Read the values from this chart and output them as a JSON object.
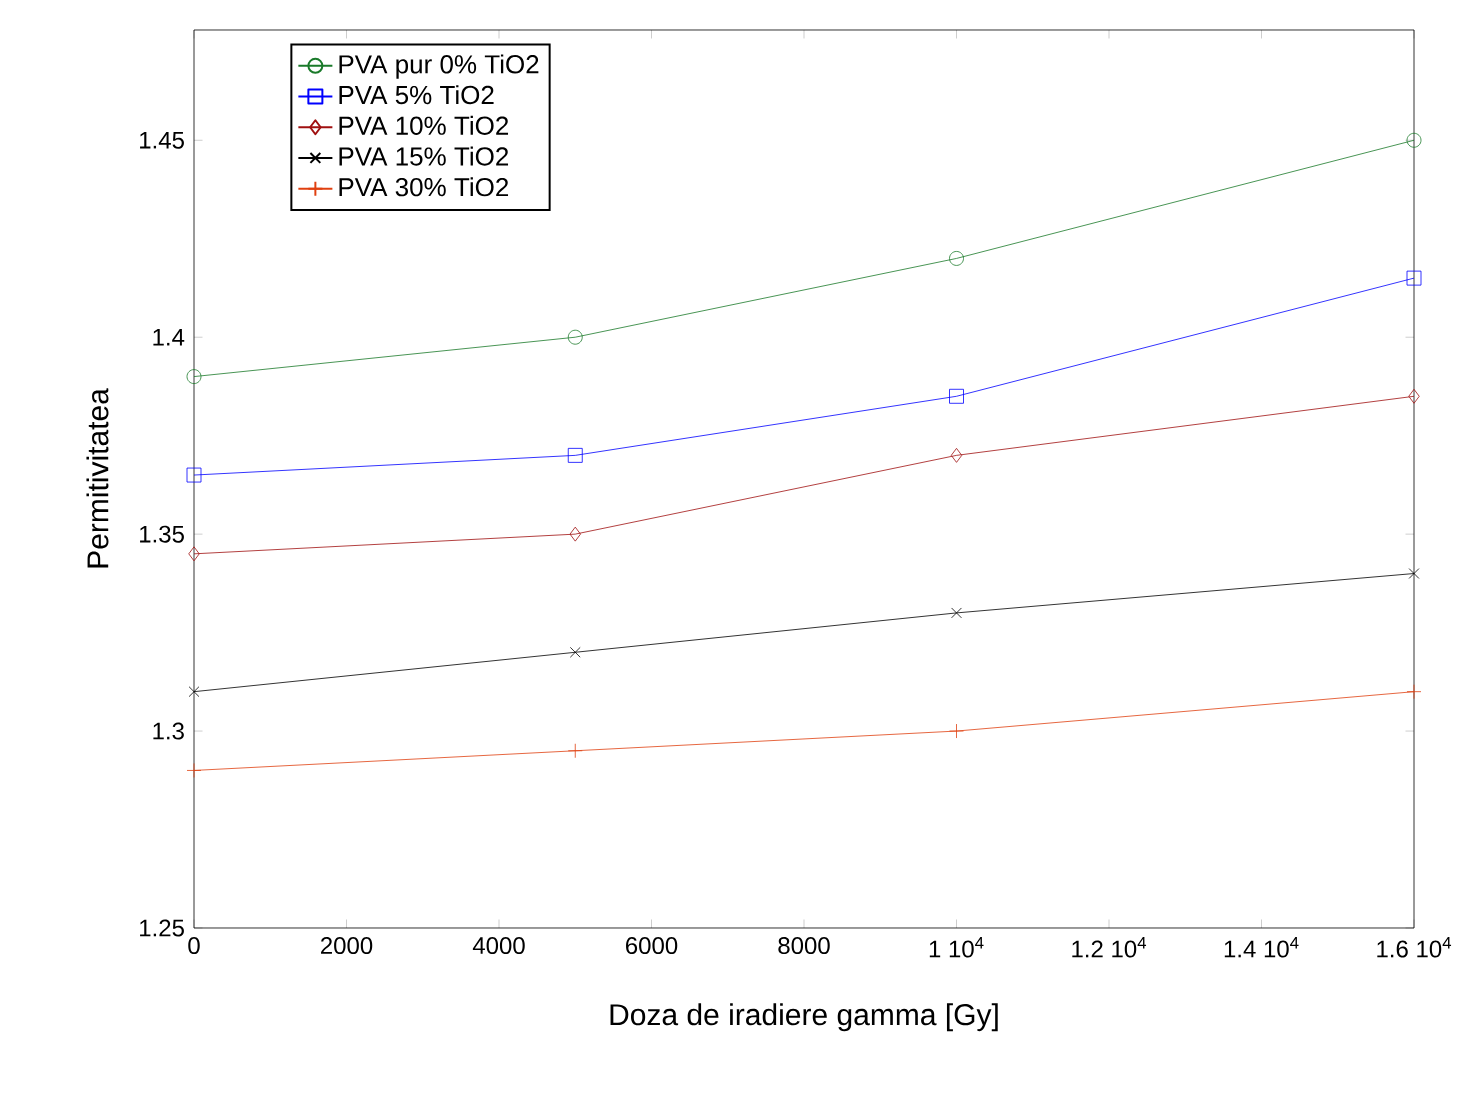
{
  "chart_data": {
    "type": "line",
    "xlabel": "Doza de iradiere gamma [Gy]",
    "ylabel": "Permitivitatea",
    "x": [
      0,
      5000,
      10000,
      16000
    ],
    "series": [
      {
        "name": "PVA pur 0% TiO2",
        "color": "#1a7a2a",
        "marker": "circle",
        "values": [
          1.39,
          1.4,
          1.42,
          1.45
        ]
      },
      {
        "name": "PVA 5% TiO2",
        "color": "#0000ff",
        "marker": "square",
        "values": [
          1.365,
          1.37,
          1.385,
          1.415
        ]
      },
      {
        "name": "PVA 10% TiO2",
        "color": "#a01010",
        "marker": "diamond",
        "values": [
          1.345,
          1.35,
          1.37,
          1.385
        ]
      },
      {
        "name": "PVA 15% TiO2",
        "color": "#000000",
        "marker": "cross",
        "values": [
          1.31,
          1.32,
          1.33,
          1.34
        ]
      },
      {
        "name": "PVA 30% TiO2",
        "color": "#e04010",
        "marker": "plus",
        "values": [
          1.29,
          1.295,
          1.3,
          1.31
        ]
      }
    ],
    "xlim": [
      0,
      16000
    ],
    "ylim": [
      1.25,
      1.478
    ],
    "xticks": [
      0,
      2000,
      4000,
      6000,
      8000,
      {
        "value": 10000,
        "label": "1 10$^{4}$"
      },
      {
        "value": 12000,
        "label": "1.2 10$^{4}$"
      },
      {
        "value": 14000,
        "label": "1.4 10$^{4}$"
      },
      {
        "value": 16000,
        "label": "1.6 10$^{4}$"
      }
    ],
    "yticks": [
      1.25,
      1.3,
      1.35,
      1.4,
      1.45
    ],
    "grid": false,
    "legend": "top left"
  }
}
